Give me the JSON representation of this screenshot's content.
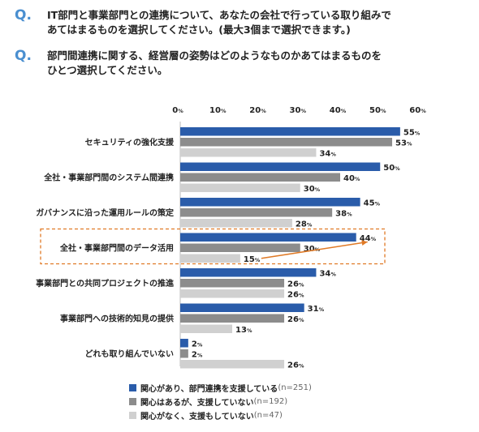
{
  "questions": [
    {
      "mark": "Q.",
      "line1": "IT部門と事業部門との連携について、あなたの会社で行っている取り組みで",
      "line2": "あてはまるものを選択してください。(最大3個まで選択できます。)"
    },
    {
      "mark": "Q.",
      "line1": "部門間連携に関する、経営層の姿勢はどのようなものかあてはまるものを",
      "line2": "ひとつ選択してください。"
    }
  ],
  "colors": {
    "series1": "#2a5caa",
    "series2": "#8c8c8c",
    "series3": "#d0d0d0",
    "highlight_box": "#e07a26",
    "arrow": "#e07a26"
  },
  "chart_data": {
    "type": "bar",
    "orientation": "horizontal",
    "unit": "%",
    "xlim": [
      0,
      60
    ],
    "ticks": [
      0,
      10,
      20,
      30,
      40,
      50,
      60
    ],
    "categories": [
      "セキュリティの強化支援",
      "全社・事業部門間のシステム間連携",
      "ガバナンスに沿った運用ルールの策定",
      "全社・事業部門間のデータ活用",
      "事業部門との共同プロジェクトの推進",
      "事業部門への技術的知見の提供",
      "どれも取り組んでいない"
    ],
    "series": [
      {
        "name": "関心があり、部門連携を支援している",
        "n": "(n=251)",
        "values": [
          55,
          50,
          45,
          44,
          34,
          31,
          2
        ]
      },
      {
        "name": "関心はあるが、支援していない",
        "n": "(n=192)",
        "values": [
          53,
          40,
          38,
          30,
          26,
          26,
          2
        ]
      },
      {
        "name": "関心がなく、支援もしていない",
        "n": "(n=47)",
        "values": [
          34,
          30,
          28,
          15,
          26,
          13,
          26
        ]
      }
    ],
    "highlight_category_index": 3,
    "grid": false,
    "legend": "bottom"
  }
}
